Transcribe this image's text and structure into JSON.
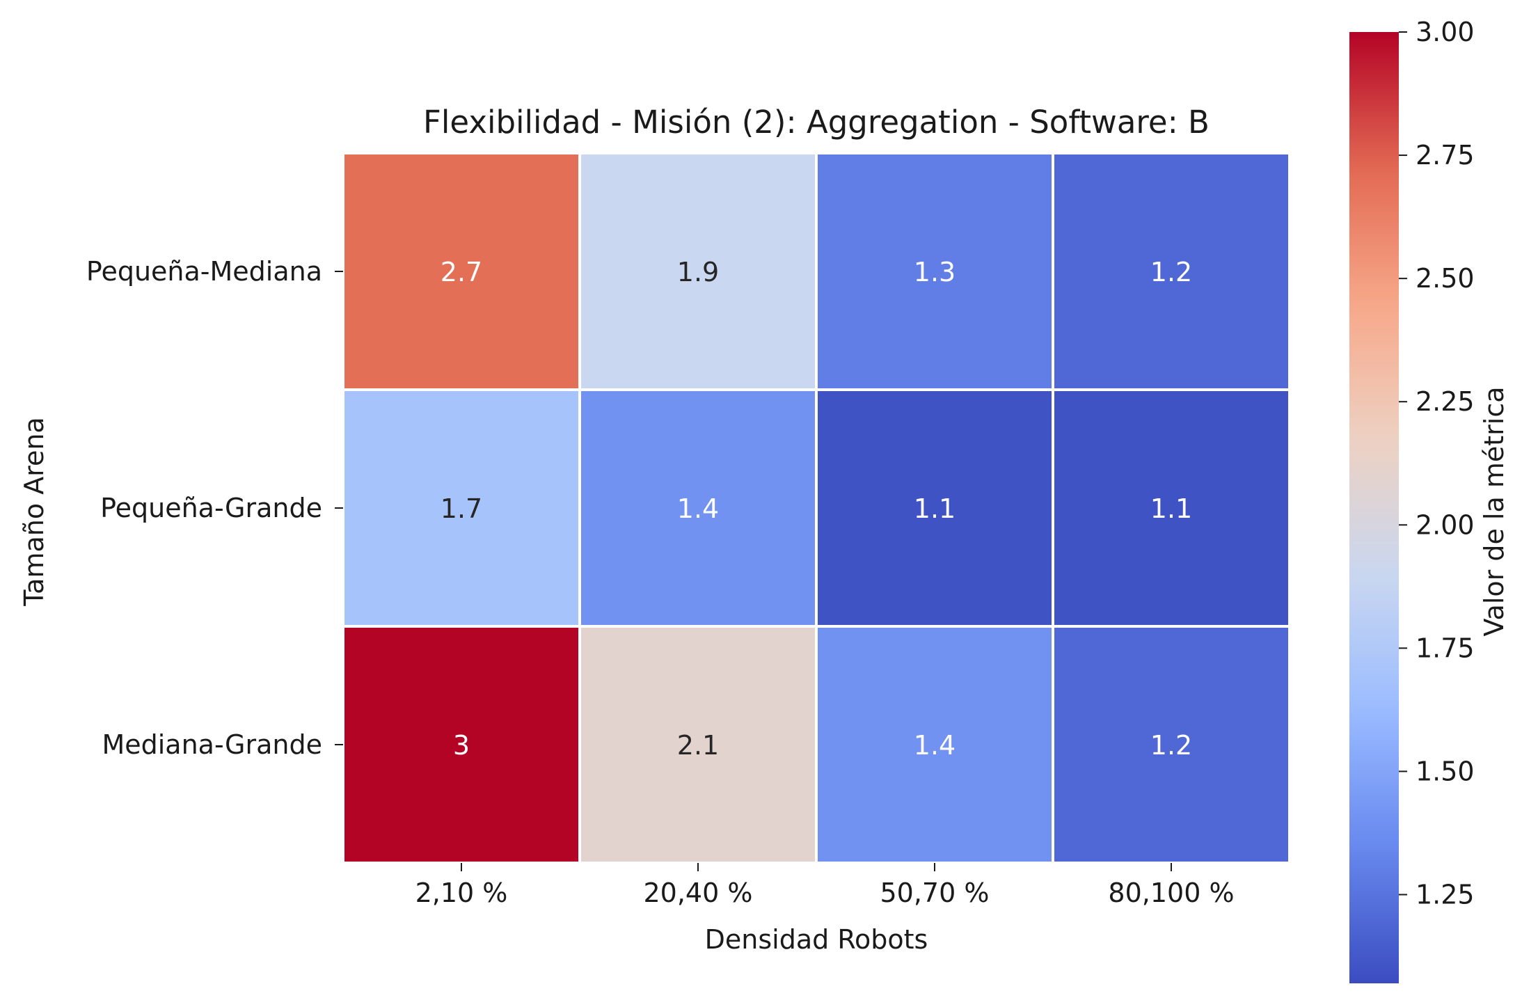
{
  "chart_data": {
    "type": "heatmap",
    "title": "Flexibilidad - Misión (2): Aggregation - Software: B",
    "xlabel": "Densidad Robots",
    "ylabel": "Tamaño Arena",
    "x_categories": [
      "2,10 %",
      "20,40 %",
      "50,70 %",
      "80,100 %"
    ],
    "y_categories": [
      "Pequeña-Mediana",
      "Pequeña-Grande",
      "Mediana-Grande"
    ],
    "values": [
      [
        2.7,
        1.9,
        1.3,
        1.2
      ],
      [
        1.7,
        1.4,
        1.1,
        1.1
      ],
      [
        3.0,
        2.1,
        1.4,
        1.2
      ]
    ],
    "cell_labels": [
      [
        "2.7",
        "1.9",
        "1.3",
        "1.2"
      ],
      [
        "1.7",
        "1.4",
        "1.1",
        "1.1"
      ],
      [
        "3",
        "2.1",
        "1.4",
        "1.2"
      ]
    ],
    "colormap": "coolwarm",
    "colorbar": {
      "label": "Valor de la métrica",
      "range": [
        1.07,
        3.0
      ],
      "ticks": [
        1.25,
        1.5,
        1.75,
        2.0,
        2.25,
        2.5,
        2.75,
        3.0
      ],
      "tick_labels": [
        "1.25",
        "1.50",
        "1.75",
        "2.00",
        "2.25",
        "2.50",
        "2.75",
        "3.00"
      ]
    },
    "colormap_stops": [
      "#3b4cc0",
      "#6788ee",
      "#9abbff",
      "#c9d7f0",
      "#edd1c2",
      "#f7a889",
      "#e26952",
      "#b40426"
    ]
  }
}
